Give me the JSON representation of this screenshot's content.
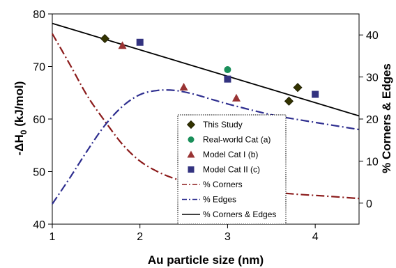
{
  "chart_data": {
    "type": "scatter",
    "title": "",
    "xlabel": "Au particle size (nm)",
    "ylabel_left_parts": [
      "-ΔH",
      "0",
      " (kJ/mol)"
    ],
    "ylabel_right": "% Corners & Edges",
    "xlim": [
      1,
      4.5
    ],
    "ylim_left": [
      40,
      80
    ],
    "ylim_right": [
      -5,
      45
    ],
    "x_ticks": [
      1,
      2,
      3,
      4
    ],
    "y_left_ticks": [
      40,
      50,
      60,
      70,
      80
    ],
    "y_right_ticks": [
      0,
      10,
      20,
      30,
      40
    ],
    "grid": false,
    "legend_position": "bottom-center",
    "series": [
      {
        "name": "This Study",
        "kind": "marker",
        "marker": "diamond",
        "color": "#333300",
        "axis": "left",
        "points": [
          [
            1.6,
            75.3
          ],
          [
            3.7,
            63.4
          ],
          [
            3.8,
            66.0
          ]
        ]
      },
      {
        "name": "Real-world Cat (a)",
        "kind": "marker",
        "marker": "circle",
        "color": "#1a8f5a",
        "axis": "left",
        "points": [
          [
            3.0,
            69.4
          ]
        ]
      },
      {
        "name": "Model Cat I (b)",
        "kind": "marker",
        "marker": "triangle",
        "color": "#993333",
        "axis": "left",
        "points": [
          [
            1.8,
            74.0
          ],
          [
            2.5,
            66.1
          ],
          [
            3.1,
            64.0
          ]
        ]
      },
      {
        "name": "Model Cat II (c)",
        "kind": "marker",
        "marker": "square",
        "color": "#333380",
        "axis": "left",
        "points": [
          [
            2.0,
            74.6
          ],
          [
            3.0,
            67.6
          ],
          [
            4.0,
            64.7
          ]
        ]
      },
      {
        "name": "% Corners",
        "kind": "line",
        "dash": "12,4,2,4",
        "color": "#8b1a1a",
        "axis": "right",
        "points": [
          [
            1.0,
            40.3
          ],
          [
            1.2,
            33.0
          ],
          [
            1.4,
            25.5
          ],
          [
            1.6,
            19.5
          ],
          [
            1.8,
            14.0
          ],
          [
            2.0,
            10.0
          ],
          [
            2.2,
            7.5
          ],
          [
            2.4,
            5.8
          ],
          [
            2.6,
            4.7
          ],
          [
            2.8,
            4.0
          ],
          [
            3.0,
            3.4
          ],
          [
            3.2,
            3.0
          ],
          [
            3.5,
            2.6
          ],
          [
            3.8,
            2.1
          ],
          [
            4.1,
            1.7
          ],
          [
            4.5,
            1.1
          ]
        ]
      },
      {
        "name": "% Edges",
        "kind": "line",
        "dash": "12,4,2,4",
        "color": "#2e2e8f",
        "axis": "right",
        "points": [
          [
            1.0,
            -0.2
          ],
          [
            1.2,
            6.0
          ],
          [
            1.4,
            12.5
          ],
          [
            1.6,
            18.5
          ],
          [
            1.8,
            23.0
          ],
          [
            2.0,
            25.8
          ],
          [
            2.2,
            26.8
          ],
          [
            2.4,
            26.8
          ],
          [
            2.6,
            26.0
          ],
          [
            2.8,
            24.8
          ],
          [
            3.0,
            23.6
          ],
          [
            3.3,
            22.0
          ],
          [
            3.6,
            20.6
          ],
          [
            4.0,
            19.2
          ],
          [
            4.5,
            17.5
          ]
        ]
      },
      {
        "name": "% Corners & Edges",
        "kind": "line",
        "dash": "",
        "color": "#000000",
        "axis": "left",
        "points": [
          [
            1.0,
            78.2
          ],
          [
            4.5,
            60.6
          ]
        ]
      }
    ]
  }
}
